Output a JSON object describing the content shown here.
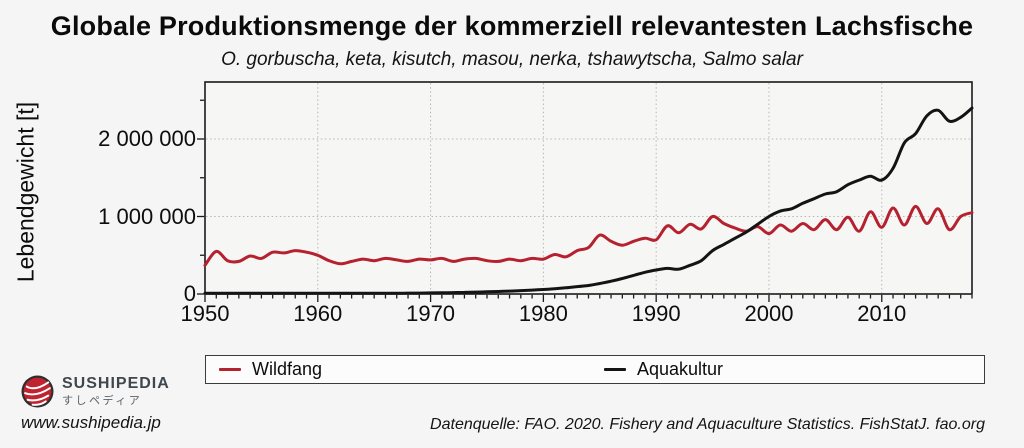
{
  "page": {
    "website": "www.sushipedia.jp",
    "source_note": "Datenquelle: FAO. 2020. Fishery and Aquaculture Statistics. FishStatJ. fao.org",
    "brand": {
      "name": "SUSHIPEDIA",
      "name_jp": "すしペディア",
      "logo_red": "#c0232f",
      "logo_ring": "#2d2d2d"
    }
  },
  "chart_data": {
    "type": "line",
    "title": "Globale Produktionsmenge der kommerziell relevantesten Lachsfische",
    "subtitle": "O. gorbuscha, keta, kisutch, masou, nerka, tshawytscha, Salmo salar",
    "ylabel": "Lebendgewicht [t]",
    "xlabel": "",
    "unit": "t",
    "xlim": [
      1950,
      2018
    ],
    "ylim": [
      0,
      2735000
    ],
    "grid": {
      "x": [
        1960,
        1970,
        1980,
        1990,
        2000,
        2010
      ],
      "y": [
        1000000,
        2000000
      ],
      "style": "dotted",
      "color": "#b7b7b7"
    },
    "xticks": {
      "major": [
        1950,
        1960,
        1970,
        1980,
        1990,
        2000,
        2010
      ],
      "minor_step_years": 1
    },
    "yticks": {
      "major": [
        {
          "value": 0,
          "label": "0"
        },
        {
          "value": 1000000,
          "label": "1 000 000"
        },
        {
          "value": 2000000,
          "label": "2 000 000"
        }
      ],
      "minor": [
        500000,
        1500000,
        2500000
      ]
    },
    "legend_position": "bottom",
    "x": [
      1950,
      1951,
      1952,
      1953,
      1954,
      1955,
      1956,
      1957,
      1958,
      1959,
      1960,
      1961,
      1962,
      1963,
      1964,
      1965,
      1966,
      1967,
      1968,
      1969,
      1970,
      1971,
      1972,
      1973,
      1974,
      1975,
      1976,
      1977,
      1978,
      1979,
      1980,
      1981,
      1982,
      1983,
      1984,
      1985,
      1986,
      1987,
      1988,
      1989,
      1990,
      1991,
      1992,
      1993,
      1994,
      1995,
      1996,
      1997,
      1998,
      1999,
      2000,
      2001,
      2002,
      2003,
      2004,
      2005,
      2006,
      2007,
      2008,
      2009,
      2010,
      2011,
      2012,
      2013,
      2014,
      2015,
      2016,
      2017,
      2018
    ],
    "series": [
      {
        "name": "Wildfang",
        "color": "#b5212e",
        "values": [
          370000,
          550000,
          430000,
          420000,
          490000,
          460000,
          540000,
          530000,
          560000,
          540000,
          500000,
          430000,
          390000,
          420000,
          450000,
          430000,
          460000,
          440000,
          420000,
          450000,
          440000,
          460000,
          420000,
          450000,
          460000,
          430000,
          420000,
          450000,
          430000,
          460000,
          450000,
          510000,
          480000,
          560000,
          600000,
          760000,
          680000,
          630000,
          680000,
          720000,
          700000,
          880000,
          790000,
          900000,
          840000,
          1000000,
          910000,
          850000,
          810000,
          870000,
          780000,
          890000,
          810000,
          910000,
          830000,
          960000,
          830000,
          990000,
          810000,
          1060000,
          860000,
          1110000,
          890000,
          1130000,
          910000,
          1100000,
          830000,
          1000000,
          1050000
        ]
      },
      {
        "name": "Aquakultur",
        "color": "#141414",
        "values": [
          2000,
          2000,
          3000,
          3000,
          3000,
          4000,
          4000,
          4000,
          5000,
          5000,
          5000,
          6000,
          6000,
          7000,
          7000,
          8000,
          9000,
          10000,
          11000,
          12000,
          14000,
          16000,
          18000,
          21000,
          24000,
          28000,
          32000,
          38000,
          44000,
          50000,
          58000,
          68000,
          80000,
          95000,
          110000,
          135000,
          165000,
          200000,
          240000,
          280000,
          310000,
          330000,
          320000,
          370000,
          430000,
          560000,
          640000,
          720000,
          800000,
          900000,
          1000000,
          1070000,
          1100000,
          1170000,
          1230000,
          1290000,
          1320000,
          1410000,
          1470000,
          1520000,
          1470000,
          1620000,
          1950000,
          2070000,
          2300000,
          2370000,
          2230000,
          2280000,
          2400000
        ]
      }
    ]
  }
}
